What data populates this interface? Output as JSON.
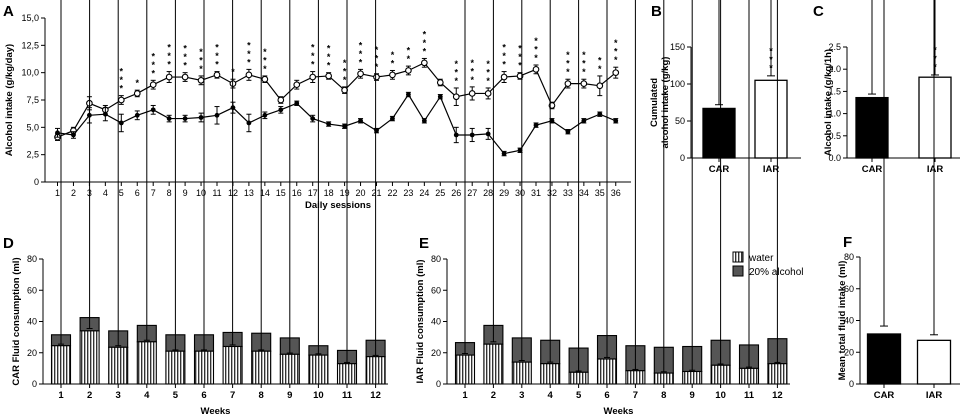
{
  "chart_data": [
    {
      "panel": "A",
      "type": "line",
      "xlabel": "Daily sessions",
      "ylabel": "Alcohol intake (g/kg/day)",
      "ylim": [
        0,
        15
      ],
      "yticks": [
        "0",
        "2,5",
        "5,0",
        "7,5",
        "10,0",
        "12,5",
        "15,0"
      ],
      "x": [
        1,
        2,
        3,
        4,
        5,
        6,
        7,
        8,
        9,
        10,
        11,
        12,
        13,
        14,
        15,
        16,
        17,
        18,
        19,
        20,
        21,
        22,
        23,
        24,
        25,
        26,
        27,
        28,
        29,
        30,
        31,
        32,
        33,
        34,
        35,
        36
      ],
      "series": [
        {
          "name": "IAR",
          "marker": "open-circle",
          "values": [
            4.1,
            4.7,
            7.2,
            6.6,
            7.5,
            8.1,
            8.9,
            9.6,
            9.6,
            9.3,
            9.8,
            9.0,
            9.8,
            9.4,
            7.5,
            8.9,
            9.6,
            9.7,
            8.4,
            9.9,
            9.6,
            9.8,
            10.2,
            10.9,
            9.1,
            7.8,
            8.1,
            8.1,
            9.6,
            9.7,
            10.3,
            7.0,
            9.0,
            9.0,
            8.8,
            10.0
          ],
          "errors": [
            0.3,
            0.3,
            0.6,
            0.4,
            0.4,
            0.3,
            0.4,
            0.5,
            0.4,
            0.4,
            0.3,
            0.4,
            0.5,
            0.3,
            0.3,
            0.4,
            0.5,
            0.3,
            0.3,
            0.4,
            0.3,
            0.4,
            0.4,
            0.4,
            0.3,
            0.8,
            0.6,
            0.5,
            0.5,
            0.3,
            0.4,
            0.3,
            0.4,
            0.4,
            0.9,
            0.5
          ]
        },
        {
          "name": "CAR",
          "marker": "filled-circle",
          "values": [
            4.5,
            4.3,
            6.1,
            6.2,
            5.4,
            6.1,
            6.6,
            5.8,
            5.8,
            5.9,
            6.1,
            6.8,
            5.4,
            6.1,
            6.6,
            7.2,
            5.8,
            5.3,
            5.1,
            5.6,
            4.7,
            5.8,
            8.0,
            5.6,
            7.8,
            4.3,
            4.3,
            4.4,
            2.6,
            2.9,
            5.2,
            5.6,
            4.6,
            5.6,
            6.2,
            5.6
          ],
          "errors": [
            0.4,
            0.3,
            0.7,
            0.6,
            0.8,
            0.4,
            0.4,
            0.3,
            0.3,
            0.4,
            0.8,
            0.5,
            0.8,
            0.3,
            0.3,
            0.2,
            0.3,
            0.2,
            0.2,
            0.2,
            0.2,
            0.2,
            0.2,
            0.2,
            0.2,
            0.7,
            0.6,
            0.5,
            0.2,
            0.2,
            0.2,
            0.2,
            0.2,
            0.2,
            0.2,
            0.2
          ]
        }
      ],
      "significance": [
        "",
        "",
        "",
        "",
        "***",
        "*",
        "***",
        "***",
        "***",
        "***",
        "***",
        "*",
        "***",
        "***",
        "",
        "",
        "***",
        "***",
        "***",
        "***",
        "***",
        "**",
        "**",
        "***",
        "",
        "***",
        "***",
        "***",
        "***",
        "***",
        "***",
        "",
        "***",
        "***",
        "**",
        "***"
      ]
    },
    {
      "panel": "B",
      "type": "bar",
      "ylabel": "Cumulated alcohol intake (g/kg)",
      "ylabel_lines": [
        "Cumulated",
        "alcohol intake (g/kg)"
      ],
      "ylim": [
        0,
        150
      ],
      "yticks": [
        "0",
        "50",
        "100",
        "150"
      ],
      "categories": [
        "CAR",
        "IAR"
      ],
      "values": [
        67,
        105
      ],
      "errors": [
        5,
        6
      ],
      "fills": [
        "#000000",
        "#ffffff"
      ],
      "significance": [
        "",
        "***"
      ]
    },
    {
      "panel": "C",
      "type": "bar",
      "ylabel": "Alcohol intake (g/kg/1h)",
      "ylim": [
        0,
        2.5
      ],
      "yticks": [
        "0.0",
        "0.5",
        "1.0",
        "1.5",
        "2.0",
        "2.5"
      ],
      "categories": [
        "CAR",
        "IAR"
      ],
      "values": [
        1.36,
        1.82
      ],
      "errors": [
        0.08,
        0.05
      ],
      "fills": [
        "#000000",
        "#ffffff"
      ],
      "significance": [
        "",
        "***"
      ]
    },
    {
      "panel": "D",
      "type": "bar",
      "stacked": true,
      "xlabel": "Weeks",
      "ylabel": "CAR Fluid consumption (ml)",
      "ylim": [
        0,
        80
      ],
      "yticks": [
        "0",
        "20",
        "40",
        "60",
        "80"
      ],
      "categories": [
        "1",
        "2",
        "3",
        "4",
        "5",
        "6",
        "7",
        "8",
        "9",
        "10",
        "11",
        "12"
      ],
      "series": [
        {
          "name": "water",
          "values": [
            24.5,
            34,
            23.5,
            27,
            21,
            21,
            24,
            21,
            19,
            18.5,
            13,
            17.5
          ],
          "errors": [
            1,
            1.5,
            1,
            1,
            0.8,
            0.8,
            1,
            0.8,
            0.8,
            0.8,
            0.8,
            0.8
          ]
        },
        {
          "name": "20% alcohol",
          "values": [
            7,
            8.5,
            10.5,
            10.5,
            10.5,
            10.5,
            9,
            11.5,
            10.5,
            6,
            8.5,
            10.5
          ]
        }
      ]
    },
    {
      "panel": "E",
      "type": "bar",
      "stacked": true,
      "xlabel": "Weeks",
      "ylabel": "IAR Fluid consumption (ml)",
      "ylim": [
        0,
        80
      ],
      "yticks": [
        "0",
        "20",
        "40",
        "60",
        "80"
      ],
      "categories": [
        "1",
        "2",
        "3",
        "4",
        "5",
        "6",
        "7",
        "8",
        "9",
        "10",
        "11",
        "12"
      ],
      "series": [
        {
          "name": "water",
          "values": [
            18.5,
            25.5,
            14,
            13,
            7.5,
            16,
            8.5,
            7,
            8,
            12,
            10,
            13
          ],
          "errors": [
            1,
            1.5,
            1,
            1,
            0.8,
            1,
            0.8,
            0.8,
            0.8,
            0.8,
            0.8,
            0.8
          ]
        },
        {
          "name": "20% alcohol",
          "values": [
            8,
            12,
            15.5,
            15,
            15.5,
            15,
            16,
            16.5,
            16,
            16,
            15,
            16
          ]
        }
      ],
      "legend": [
        "water",
        "20% alcohol"
      ]
    },
    {
      "panel": "F",
      "type": "bar",
      "ylabel": "Mean total fluid intake (ml)",
      "ylim": [
        0,
        80
      ],
      "yticks": [
        "0",
        "20",
        "40",
        "60",
        "80"
      ],
      "categories": [
        "CAR",
        "IAR"
      ],
      "values": [
        31.5,
        27.5
      ],
      "errors": [
        5,
        3.5
      ],
      "fills": [
        "#000000",
        "#ffffff"
      ]
    }
  ]
}
